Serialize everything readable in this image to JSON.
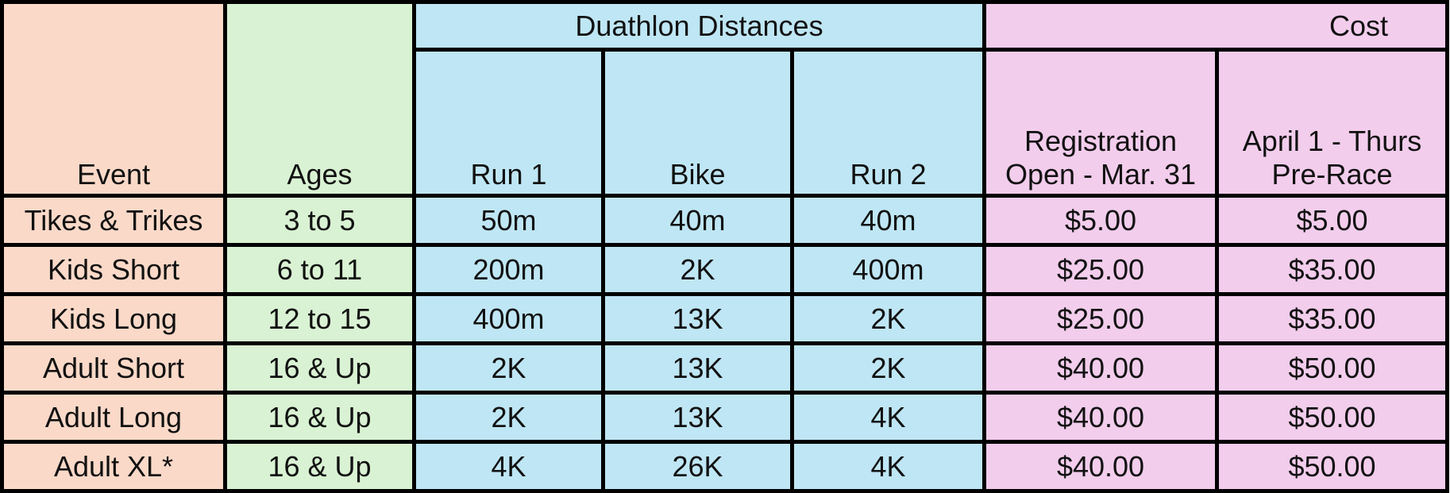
{
  "table": {
    "headers": {
      "event": "Event",
      "ages": "Ages",
      "distances_group": "Duathlon Distances",
      "run1": "Run 1",
      "bike": "Bike",
      "run2": "Run 2",
      "cost_group": "Cost",
      "cost_early_line1": "Registration",
      "cost_early_line2": "Open - Mar. 31",
      "cost_late_line1": "April 1 - Thurs",
      "cost_late_line2": "Pre-Race"
    },
    "rows": [
      {
        "event": "Tikes & Trikes",
        "ages": "3 to 5",
        "run1": "50m",
        "bike": "40m",
        "run2": "40m",
        "cost_early": "$5.00",
        "cost_late": "$5.00"
      },
      {
        "event": "Kids Short",
        "ages": "6 to 11",
        "run1": "200m",
        "bike": "2K",
        "run2": "400m",
        "cost_early": "$25.00",
        "cost_late": "$35.00"
      },
      {
        "event": "Kids Long",
        "ages": "12 to 15",
        "run1": "400m",
        "bike": "13K",
        "run2": "2K",
        "cost_early": "$25.00",
        "cost_late": "$35.00"
      },
      {
        "event": "Adult Short",
        "ages": "16 & Up",
        "run1": "2K",
        "bike": "13K",
        "run2": "2K",
        "cost_early": "$40.00",
        "cost_late": "$50.00"
      },
      {
        "event": "Adult Long",
        "ages": "16 & Up",
        "run1": "2K",
        "bike": "13K",
        "run2": "4K",
        "cost_early": "$40.00",
        "cost_late": "$50.00"
      },
      {
        "event": "Adult XL*",
        "ages": "16 & Up",
        "run1": "4K",
        "bike": "26K",
        "run2": "4K",
        "cost_early": "$40.00",
        "cost_late": "$50.00"
      }
    ]
  },
  "colors": {
    "event": "#fbd9c8",
    "ages": "#d9f2d3",
    "distances": "#bfe6f4",
    "cost": "#f2cdec"
  }
}
